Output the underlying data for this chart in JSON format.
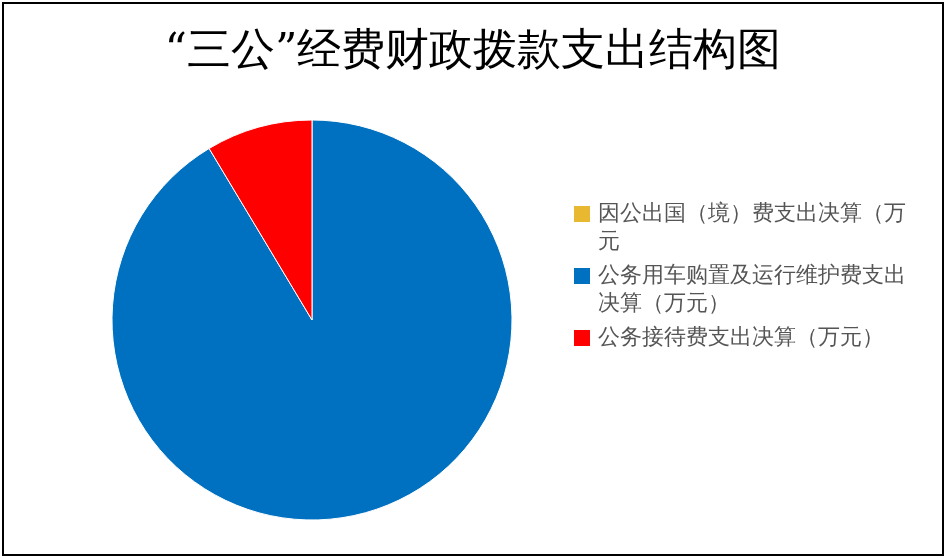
{
  "chart_data": {
    "type": "pie",
    "title": "“三公”经费财政拨款支出结构图",
    "categories": [
      "因公出国（境）费支出决算（万元",
      "公务用车购置及运行维护费支出决算（万元）",
      "公务接待费支出决算（万元）"
    ],
    "values": [
      0,
      91.4,
      8.6
    ],
    "colors": [
      "#e8b830",
      "#0070c0",
      "#ff0000"
    ],
    "legend": "right"
  }
}
